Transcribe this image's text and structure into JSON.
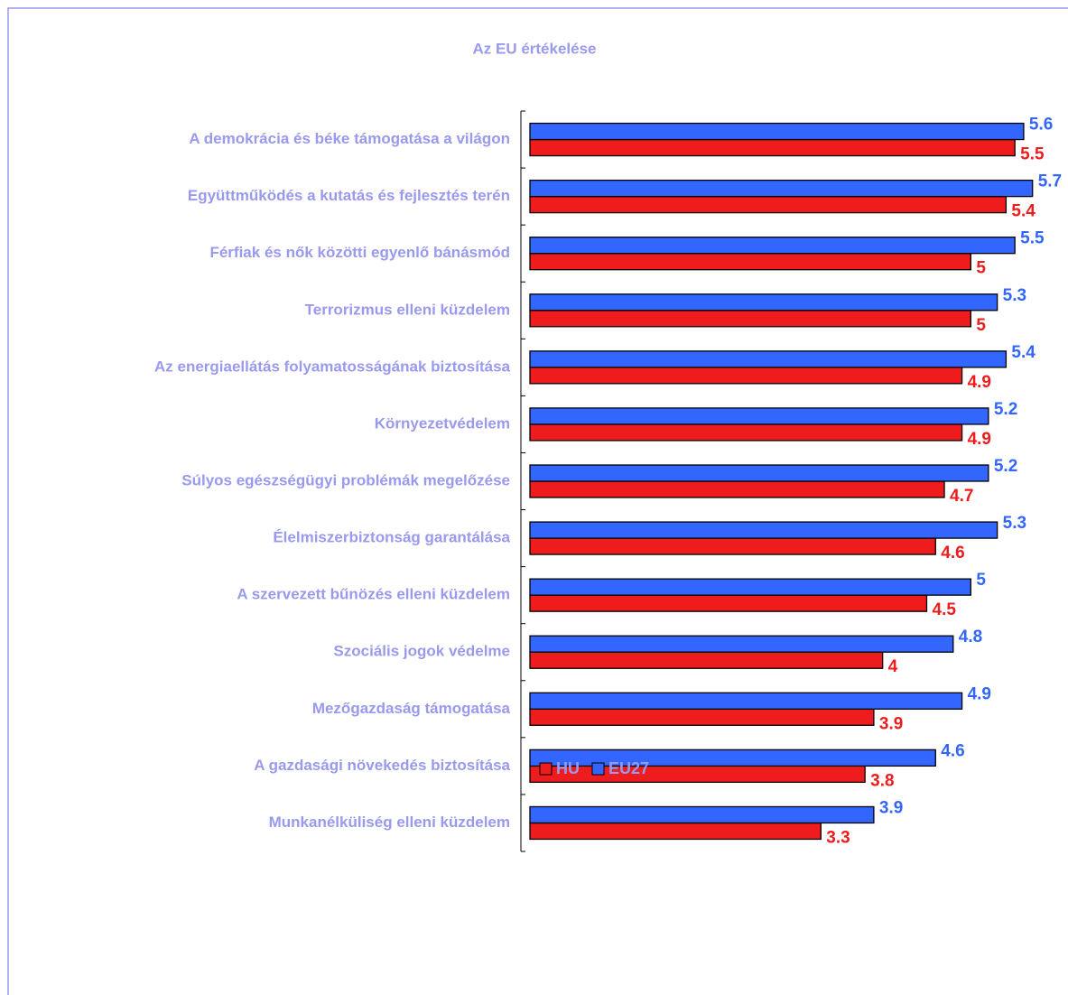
{
  "chart_data": {
    "type": "bar",
    "orientation": "horizontal",
    "title": "Az EU értékelése",
    "categories": [
      "A demokrácia és béke támogatása a világon",
      "Együttműködés a kutatás és fejlesztés terén",
      "Férfiak és nők közötti egyenlő bánásmód",
      "Terrorizmus elleni küzdelem",
      "Az energiaellátás folyamatosságának biztosítása",
      "Környezetvédelem",
      "Súlyos egészségügyi problémák megelőzése",
      "Élelmiszerbiztonság garantálása",
      "A szervezett bűnözés elleni küzdelem",
      "Szociális jogok védelme",
      "Mezőgazdaság támogatása",
      "A gazdasági növekedés biztosítása",
      "Munkanélküliség elleni küzdelem"
    ],
    "series": [
      {
        "name": "HU",
        "color": "#ee1c1c",
        "values": [
          5.5,
          5.4,
          5,
          5,
          4.9,
          4.9,
          4.7,
          4.6,
          4.5,
          4,
          3.9,
          3.8,
          3.3
        ]
      },
      {
        "name": "EU27",
        "color": "#3366ff",
        "values": [
          5.6,
          5.7,
          5.5,
          5.3,
          5.4,
          5.2,
          5.2,
          5.3,
          5,
          4.8,
          4.9,
          4.6,
          3.9
        ]
      }
    ],
    "xlim": [
      0,
      6
    ],
    "legend": "bottom"
  }
}
